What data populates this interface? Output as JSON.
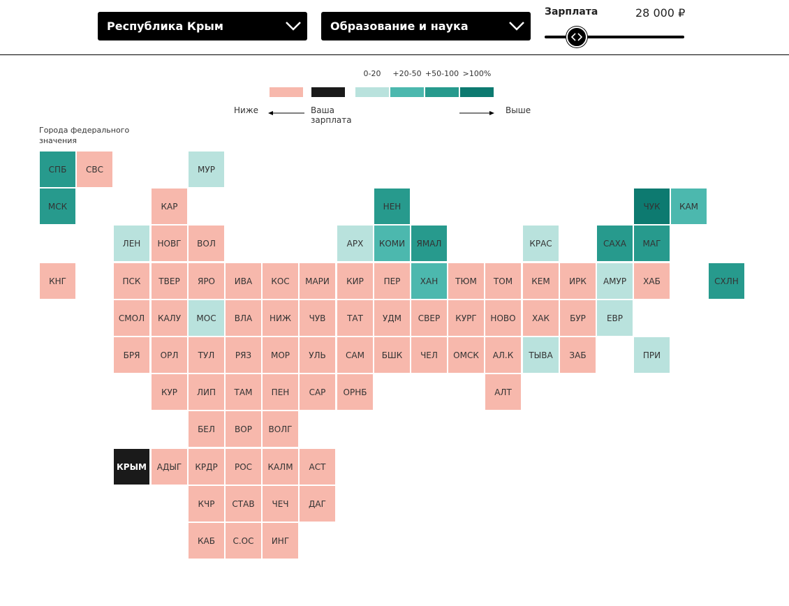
{
  "header": {
    "region_dropdown": {
      "value": "Республика Крым",
      "icon": "chevron-down-icon"
    },
    "sector_dropdown": {
      "value": "Образование и наука",
      "icon": "chevron-down-icon"
    },
    "salary": {
      "title": "Зарплата",
      "value": "28 000 ₽",
      "slider_level": 0.2
    }
  },
  "legend": {
    "ranges": [
      "0-20",
      "+20-50",
      "+50-100",
      ">100%"
    ],
    "lower_label": "Ниже",
    "your_salary_label": "Ваша зарплата",
    "higher_label": "Выше"
  },
  "colors": {
    "lower": "#f7b8ac",
    "your_salary": "#1a1a1a",
    "higher_0_20": "#b9e2dd",
    "higher_20_50": "#4cb8ae",
    "higher_50_100": "#279a8d",
    "higher_100_plus": "#0d7a70"
  },
  "map": {
    "federal_cities_label": "Города федерального значения",
    "regions": [
      {
        "name": "СПБ",
        "col": 0,
        "row": 0,
        "level": "higher_50_100"
      },
      {
        "name": "СВС",
        "col": 1,
        "row": 0,
        "level": "lower"
      },
      {
        "name": "МУР",
        "col": 4,
        "row": 0,
        "level": "higher_0_20"
      },
      {
        "name": "МСК",
        "col": 0,
        "row": 1,
        "level": "higher_50_100"
      },
      {
        "name": "КАР",
        "col": 3,
        "row": 1,
        "level": "lower"
      },
      {
        "name": "НЕН",
        "col": 9,
        "row": 1,
        "level": "higher_50_100"
      },
      {
        "name": "ЧУК",
        "col": 16,
        "row": 1,
        "level": "higher_100_plus"
      },
      {
        "name": "КАМ",
        "col": 17,
        "row": 1,
        "level": "higher_20_50"
      },
      {
        "name": "ЛЕН",
        "col": 2,
        "row": 2,
        "level": "higher_0_20"
      },
      {
        "name": "НОВГ",
        "col": 3,
        "row": 2,
        "level": "lower"
      },
      {
        "name": "ВОЛ",
        "col": 4,
        "row": 2,
        "level": "lower"
      },
      {
        "name": "АРХ",
        "col": 8,
        "row": 2,
        "level": "higher_0_20"
      },
      {
        "name": "КОМИ",
        "col": 9,
        "row": 2,
        "level": "higher_20_50"
      },
      {
        "name": "ЯМАЛ",
        "col": 10,
        "row": 2,
        "level": "higher_50_100"
      },
      {
        "name": "КРАС",
        "col": 13,
        "row": 2,
        "level": "higher_0_20"
      },
      {
        "name": "САХА",
        "col": 15,
        "row": 2,
        "level": "higher_50_100"
      },
      {
        "name": "МАГ",
        "col": 16,
        "row": 2,
        "level": "higher_50_100"
      },
      {
        "name": "КНГ",
        "col": 0,
        "row": 3,
        "level": "lower"
      },
      {
        "name": "ПСК",
        "col": 2,
        "row": 3,
        "level": "lower"
      },
      {
        "name": "ТВЕР",
        "col": 3,
        "row": 3,
        "level": "lower"
      },
      {
        "name": "ЯРО",
        "col": 4,
        "row": 3,
        "level": "lower"
      },
      {
        "name": "ИВА",
        "col": 5,
        "row": 3,
        "level": "lower"
      },
      {
        "name": "КОС",
        "col": 6,
        "row": 3,
        "level": "lower"
      },
      {
        "name": "МАРИ",
        "col": 7,
        "row": 3,
        "level": "lower"
      },
      {
        "name": "КИР",
        "col": 8,
        "row": 3,
        "level": "lower"
      },
      {
        "name": "ПЕР",
        "col": 9,
        "row": 3,
        "level": "lower"
      },
      {
        "name": "ХАН",
        "col": 10,
        "row": 3,
        "level": "higher_20_50"
      },
      {
        "name": "ТЮМ",
        "col": 11,
        "row": 3,
        "level": "lower"
      },
      {
        "name": "ТОМ",
        "col": 12,
        "row": 3,
        "level": "lower"
      },
      {
        "name": "КЕМ",
        "col": 13,
        "row": 3,
        "level": "lower"
      },
      {
        "name": "ИРК",
        "col": 14,
        "row": 3,
        "level": "lower"
      },
      {
        "name": "АМУР",
        "col": 15,
        "row": 3,
        "level": "higher_0_20"
      },
      {
        "name": "ХАБ",
        "col": 16,
        "row": 3,
        "level": "lower"
      },
      {
        "name": "СХЛН",
        "col": 18,
        "row": 3,
        "level": "higher_50_100"
      },
      {
        "name": "СМОЛ",
        "col": 2,
        "row": 4,
        "level": "lower"
      },
      {
        "name": "КАЛУ",
        "col": 3,
        "row": 4,
        "level": "lower"
      },
      {
        "name": "МОС",
        "col": 4,
        "row": 4,
        "level": "higher_0_20"
      },
      {
        "name": "ВЛА",
        "col": 5,
        "row": 4,
        "level": "lower"
      },
      {
        "name": "НИЖ",
        "col": 6,
        "row": 4,
        "level": "lower"
      },
      {
        "name": "ЧУВ",
        "col": 7,
        "row": 4,
        "level": "lower"
      },
      {
        "name": "ТАТ",
        "col": 8,
        "row": 4,
        "level": "lower"
      },
      {
        "name": "УДМ",
        "col": 9,
        "row": 4,
        "level": "lower"
      },
      {
        "name": "СВЕР",
        "col": 10,
        "row": 4,
        "level": "lower"
      },
      {
        "name": "КУРГ",
        "col": 11,
        "row": 4,
        "level": "lower"
      },
      {
        "name": "НОВО",
        "col": 12,
        "row": 4,
        "level": "lower"
      },
      {
        "name": "ХАК",
        "col": 13,
        "row": 4,
        "level": "lower"
      },
      {
        "name": "БУР",
        "col": 14,
        "row": 4,
        "level": "lower"
      },
      {
        "name": "ЕВР",
        "col": 15,
        "row": 4,
        "level": "higher_0_20"
      },
      {
        "name": "БРЯ",
        "col": 2,
        "row": 5,
        "level": "lower"
      },
      {
        "name": "ОРЛ",
        "col": 3,
        "row": 5,
        "level": "lower"
      },
      {
        "name": "ТУЛ",
        "col": 4,
        "row": 5,
        "level": "lower"
      },
      {
        "name": "РЯЗ",
        "col": 5,
        "row": 5,
        "level": "lower"
      },
      {
        "name": "МОР",
        "col": 6,
        "row": 5,
        "level": "lower"
      },
      {
        "name": "УЛЬ",
        "col": 7,
        "row": 5,
        "level": "lower"
      },
      {
        "name": "САМ",
        "col": 8,
        "row": 5,
        "level": "lower"
      },
      {
        "name": "БШК",
        "col": 9,
        "row": 5,
        "level": "lower"
      },
      {
        "name": "ЧЕЛ",
        "col": 10,
        "row": 5,
        "level": "lower"
      },
      {
        "name": "ОМСК",
        "col": 11,
        "row": 5,
        "level": "lower"
      },
      {
        "name": "АЛ.К",
        "col": 12,
        "row": 5,
        "level": "lower"
      },
      {
        "name": "ТЫВА",
        "col": 13,
        "row": 5,
        "level": "higher_0_20"
      },
      {
        "name": "ЗАБ",
        "col": 14,
        "row": 5,
        "level": "lower"
      },
      {
        "name": "ПРИ",
        "col": 16,
        "row": 5,
        "level": "higher_0_20"
      },
      {
        "name": "КУР",
        "col": 3,
        "row": 6,
        "level": "lower"
      },
      {
        "name": "ЛИП",
        "col": 4,
        "row": 6,
        "level": "lower"
      },
      {
        "name": "ТАМ",
        "col": 5,
        "row": 6,
        "level": "lower"
      },
      {
        "name": "ПЕН",
        "col": 6,
        "row": 6,
        "level": "lower"
      },
      {
        "name": "САР",
        "col": 7,
        "row": 6,
        "level": "lower"
      },
      {
        "name": "ОРНБ",
        "col": 8,
        "row": 6,
        "level": "lower"
      },
      {
        "name": "АЛТ",
        "col": 12,
        "row": 6,
        "level": "lower"
      },
      {
        "name": "БЕЛ",
        "col": 4,
        "row": 7,
        "level": "lower"
      },
      {
        "name": "ВОР",
        "col": 5,
        "row": 7,
        "level": "lower"
      },
      {
        "name": "ВОЛГ",
        "col": 6,
        "row": 7,
        "level": "lower"
      },
      {
        "name": "КРЫМ",
        "col": 2,
        "row": 8,
        "level": "your_salary"
      },
      {
        "name": "АДЫГ",
        "col": 3,
        "row": 8,
        "level": "lower"
      },
      {
        "name": "КРДР",
        "col": 4,
        "row": 8,
        "level": "lower"
      },
      {
        "name": "РОС",
        "col": 5,
        "row": 8,
        "level": "lower"
      },
      {
        "name": "КАЛМ",
        "col": 6,
        "row": 8,
        "level": "lower"
      },
      {
        "name": "АСТ",
        "col": 7,
        "row": 8,
        "level": "lower"
      },
      {
        "name": "КЧР",
        "col": 4,
        "row": 9,
        "level": "lower"
      },
      {
        "name": "СТАВ",
        "col": 5,
        "row": 9,
        "level": "lower"
      },
      {
        "name": "ЧЕЧ",
        "col": 6,
        "row": 9,
        "level": "lower"
      },
      {
        "name": "ДАГ",
        "col": 7,
        "row": 9,
        "level": "lower"
      },
      {
        "name": "КАБ",
        "col": 4,
        "row": 10,
        "level": "lower"
      },
      {
        "name": "С.ОС",
        "col": 5,
        "row": 10,
        "level": "lower"
      },
      {
        "name": "ИНГ",
        "col": 6,
        "row": 10,
        "level": "lower"
      }
    ]
  }
}
